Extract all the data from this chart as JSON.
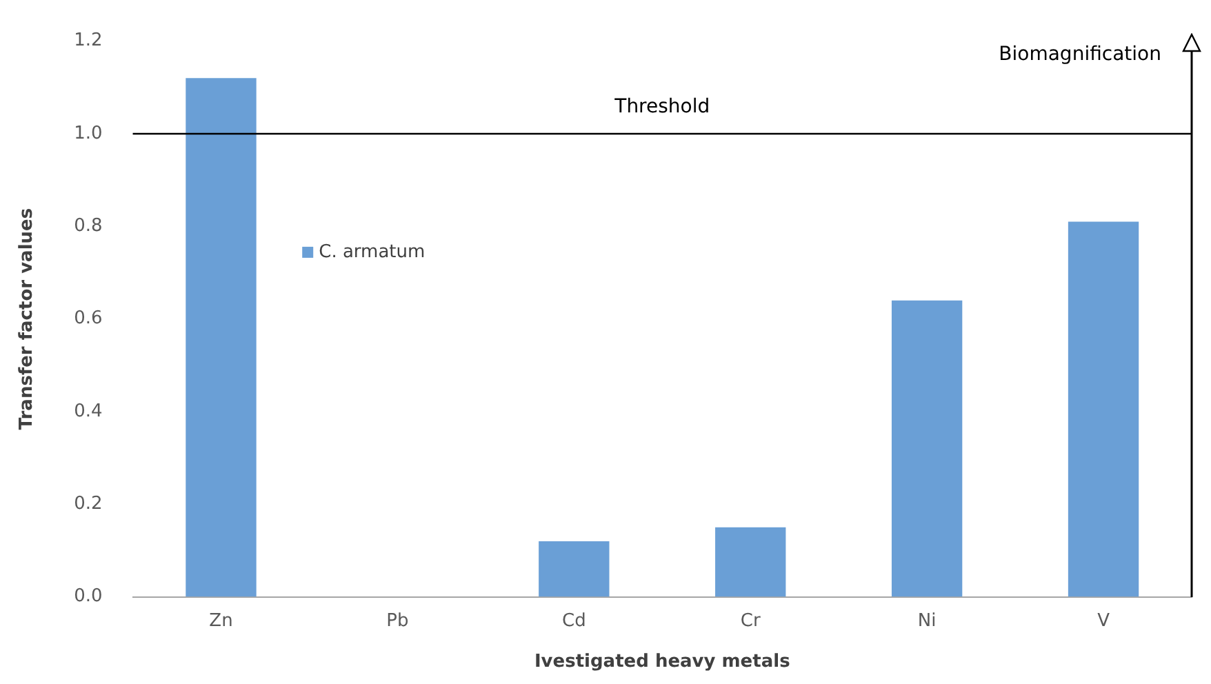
{
  "chart_data": {
    "type": "bar",
    "xlabel": "Ivestigated heavy metals",
    "ylabel": "Transfer factor values",
    "categories": [
      "Zn",
      "Pb",
      "Cd",
      "Cr",
      "Ni",
      "V"
    ],
    "series": [
      {
        "name": "C. armatum",
        "color": "#6a9fd6",
        "values": [
          1.12,
          0,
          0.12,
          0.15,
          0.64,
          0.81
        ]
      }
    ],
    "ylim": [
      0,
      1.2
    ],
    "yticks": [
      {
        "value": 0,
        "label": "0.0"
      },
      0.2,
      0.4,
      0.6,
      0.8,
      {
        "value": 1,
        "label": "1.0"
      },
      1.2
    ],
    "grid": false,
    "legend": "left",
    "ref_lines": [
      {
        "axis": "y",
        "value": 1,
        "label": "Threshold",
        "color": "#000000"
      }
    ],
    "annotations": [
      "Biomagnification"
    ]
  }
}
